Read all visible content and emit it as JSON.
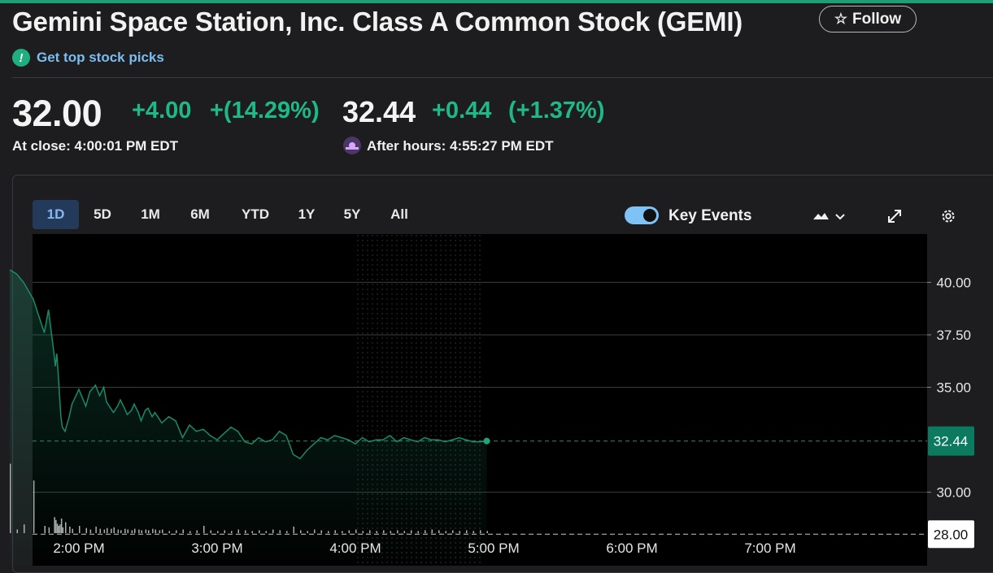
{
  "header": {
    "title": "Gemini Space Station, Inc. Class A Common Stock (GEMI)",
    "follow_label": "Follow",
    "picks_label": "Get top stock picks"
  },
  "quote": {
    "close_price": "32.00",
    "close_change": "+4.00",
    "close_change_pct": "+(14.29%)",
    "close_time": "At close: 4:00:01 PM EDT",
    "ah_price": "32.44",
    "ah_change": "+0.44",
    "ah_change_pct": "(+1.37%)",
    "ah_time": "After hours: 4:55:27 PM EDT"
  },
  "toolbar": {
    "ranges": [
      "1D",
      "5D",
      "1M",
      "6M",
      "YTD",
      "1Y",
      "5Y",
      "All"
    ],
    "active_range": "1D",
    "key_events_label": "Key Events",
    "key_events_on": true
  },
  "colors": {
    "accent": "#1fb887",
    "line": "#1a8a68",
    "link": "#7bbdf0"
  },
  "chart_data": {
    "type": "line",
    "x_labels": [
      "2:00 PM",
      "3:00 PM",
      "4:00 PM",
      "5:00 PM",
      "6:00 PM",
      "7:00 PM"
    ],
    "y_ticks": [
      "40.00",
      "37.50",
      "35.00",
      "30.00"
    ],
    "ylim": [
      26.5,
      42.3
    ],
    "current_price_label": "32.44",
    "current_price": 32.44,
    "prev_close_label": "28.00",
    "prev_close": 28.0,
    "series": [
      {
        "x": [
          1.5,
          1.55,
          1.6,
          1.67,
          1.75,
          1.78,
          1.82,
          1.83,
          1.84,
          1.85,
          1.86,
          1.87,
          1.88,
          1.9,
          1.93,
          1.95,
          2.0,
          2.05,
          2.08,
          2.12,
          2.15,
          2.18,
          2.2,
          2.23,
          2.25,
          2.28,
          2.3,
          2.33,
          2.35,
          2.38,
          2.4,
          2.43,
          2.45,
          2.48,
          2.5,
          2.53,
          2.55,
          2.58,
          2.6,
          2.65,
          2.7,
          2.75,
          2.8,
          2.85,
          2.9,
          2.95,
          3.0,
          3.05,
          3.1,
          3.15,
          3.2,
          3.25,
          3.3,
          3.35,
          3.4,
          3.45,
          3.5,
          3.55,
          3.6,
          3.65,
          3.7,
          3.75,
          3.8,
          3.85,
          3.9,
          3.95,
          4.0,
          4.05,
          4.1,
          4.15,
          4.2,
          4.25,
          4.3,
          4.35,
          4.4,
          4.45,
          4.5,
          4.55,
          4.6,
          4.65,
          4.7,
          4.75,
          4.8,
          4.85,
          4.9,
          4.95
        ],
        "values": [
          40.6,
          40.4,
          40.0,
          39.2,
          37.6,
          38.7,
          36.6,
          36.0,
          36.6,
          35.7,
          34.6,
          33.6,
          33.1,
          32.9,
          33.6,
          34.2,
          34.9,
          34.1,
          34.8,
          35.1,
          34.6,
          35.0,
          34.3,
          34.0,
          33.8,
          34.1,
          34.4,
          34.0,
          33.7,
          33.9,
          34.2,
          33.8,
          33.4,
          33.9,
          34.0,
          33.6,
          33.8,
          33.5,
          33.3,
          33.6,
          33.4,
          32.6,
          33.2,
          32.9,
          33.0,
          32.7,
          32.5,
          32.8,
          33.1,
          32.9,
          32.4,
          32.3,
          32.6,
          32.4,
          32.5,
          32.9,
          32.7,
          31.8,
          31.6,
          32.0,
          32.3,
          32.6,
          32.5,
          32.7,
          32.6,
          32.5,
          32.3,
          32.6,
          32.4,
          32.5,
          32.5,
          32.7,
          32.4,
          32.6,
          32.5,
          32.4,
          32.6,
          32.5,
          32.5,
          32.4,
          32.5,
          32.6,
          32.5,
          32.4,
          32.4,
          32.44
        ]
      }
    ],
    "volume": [
      0.95,
      0.05,
      0.12,
      0.72,
      0.1,
      0.08,
      0.22,
      0.18,
      0.13,
      0.1,
      0.12,
      0.2,
      0.08,
      0.15,
      0.09,
      0.06,
      0.1,
      0.07,
      0.05,
      0.09,
      0.06,
      0.05,
      0.07,
      0.06,
      0.08,
      0.05,
      0.04,
      0.06,
      0.05,
      0.04,
      0.06,
      0.05,
      0.04,
      0.05,
      0.04,
      0.06,
      0.05,
      0.04,
      0.05,
      0.03,
      0.04,
      0.05,
      0.03,
      0.04,
      0.1,
      0.04,
      0.03,
      0.04,
      0.03,
      0.05,
      0.04,
      0.03,
      0.04,
      0.03,
      0.05,
      0.04,
      0.03,
      0.09,
      0.04,
      0.03,
      0.05,
      0.04,
      0.03,
      0.04,
      0.03,
      0.04,
      0.05,
      0.03,
      0.04,
      0.03,
      0.04,
      0.03,
      0.04,
      0.03,
      0.04,
      0.03,
      0.04,
      0.05,
      0.04,
      0.03,
      0.04,
      0.03,
      0.04,
      0.03,
      0.04,
      0.03
    ]
  }
}
